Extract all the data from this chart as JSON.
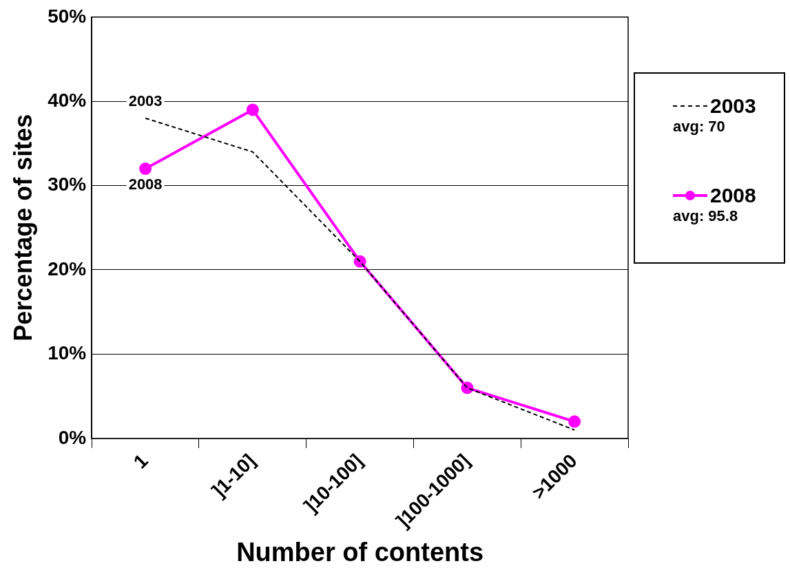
{
  "chart_data": {
    "type": "line",
    "xlabel": "Number of contents",
    "ylabel": "Percentage of sites",
    "categories": [
      "1",
      "]1-10]",
      "]10-100]",
      "]100-1000]",
      ">1000"
    ],
    "series": [
      {
        "name": "2003",
        "color": "#000000",
        "values": [
          38,
          34,
          21,
          6,
          1
        ],
        "marker": "none",
        "line_style": "dashed"
      },
      {
        "name": "2008",
        "color": "#ff00ff",
        "values": [
          32,
          39,
          21,
          6,
          2
        ],
        "marker": "circle",
        "line_style": "solid"
      }
    ],
    "annotations": [
      "avg: 70",
      "avg: 95.8"
    ],
    "ylim": [
      0,
      50
    ],
    "yticks": [
      {
        "value": 0,
        "label": "0%"
      },
      {
        "value": 10,
        "label": "10%"
      },
      {
        "value": 20,
        "label": "20%"
      },
      {
        "value": 30,
        "label": "30%"
      },
      {
        "value": 40,
        "label": "40%"
      },
      {
        "value": 50,
        "label": "50%"
      }
    ],
    "grid": "y",
    "legend": "right"
  }
}
